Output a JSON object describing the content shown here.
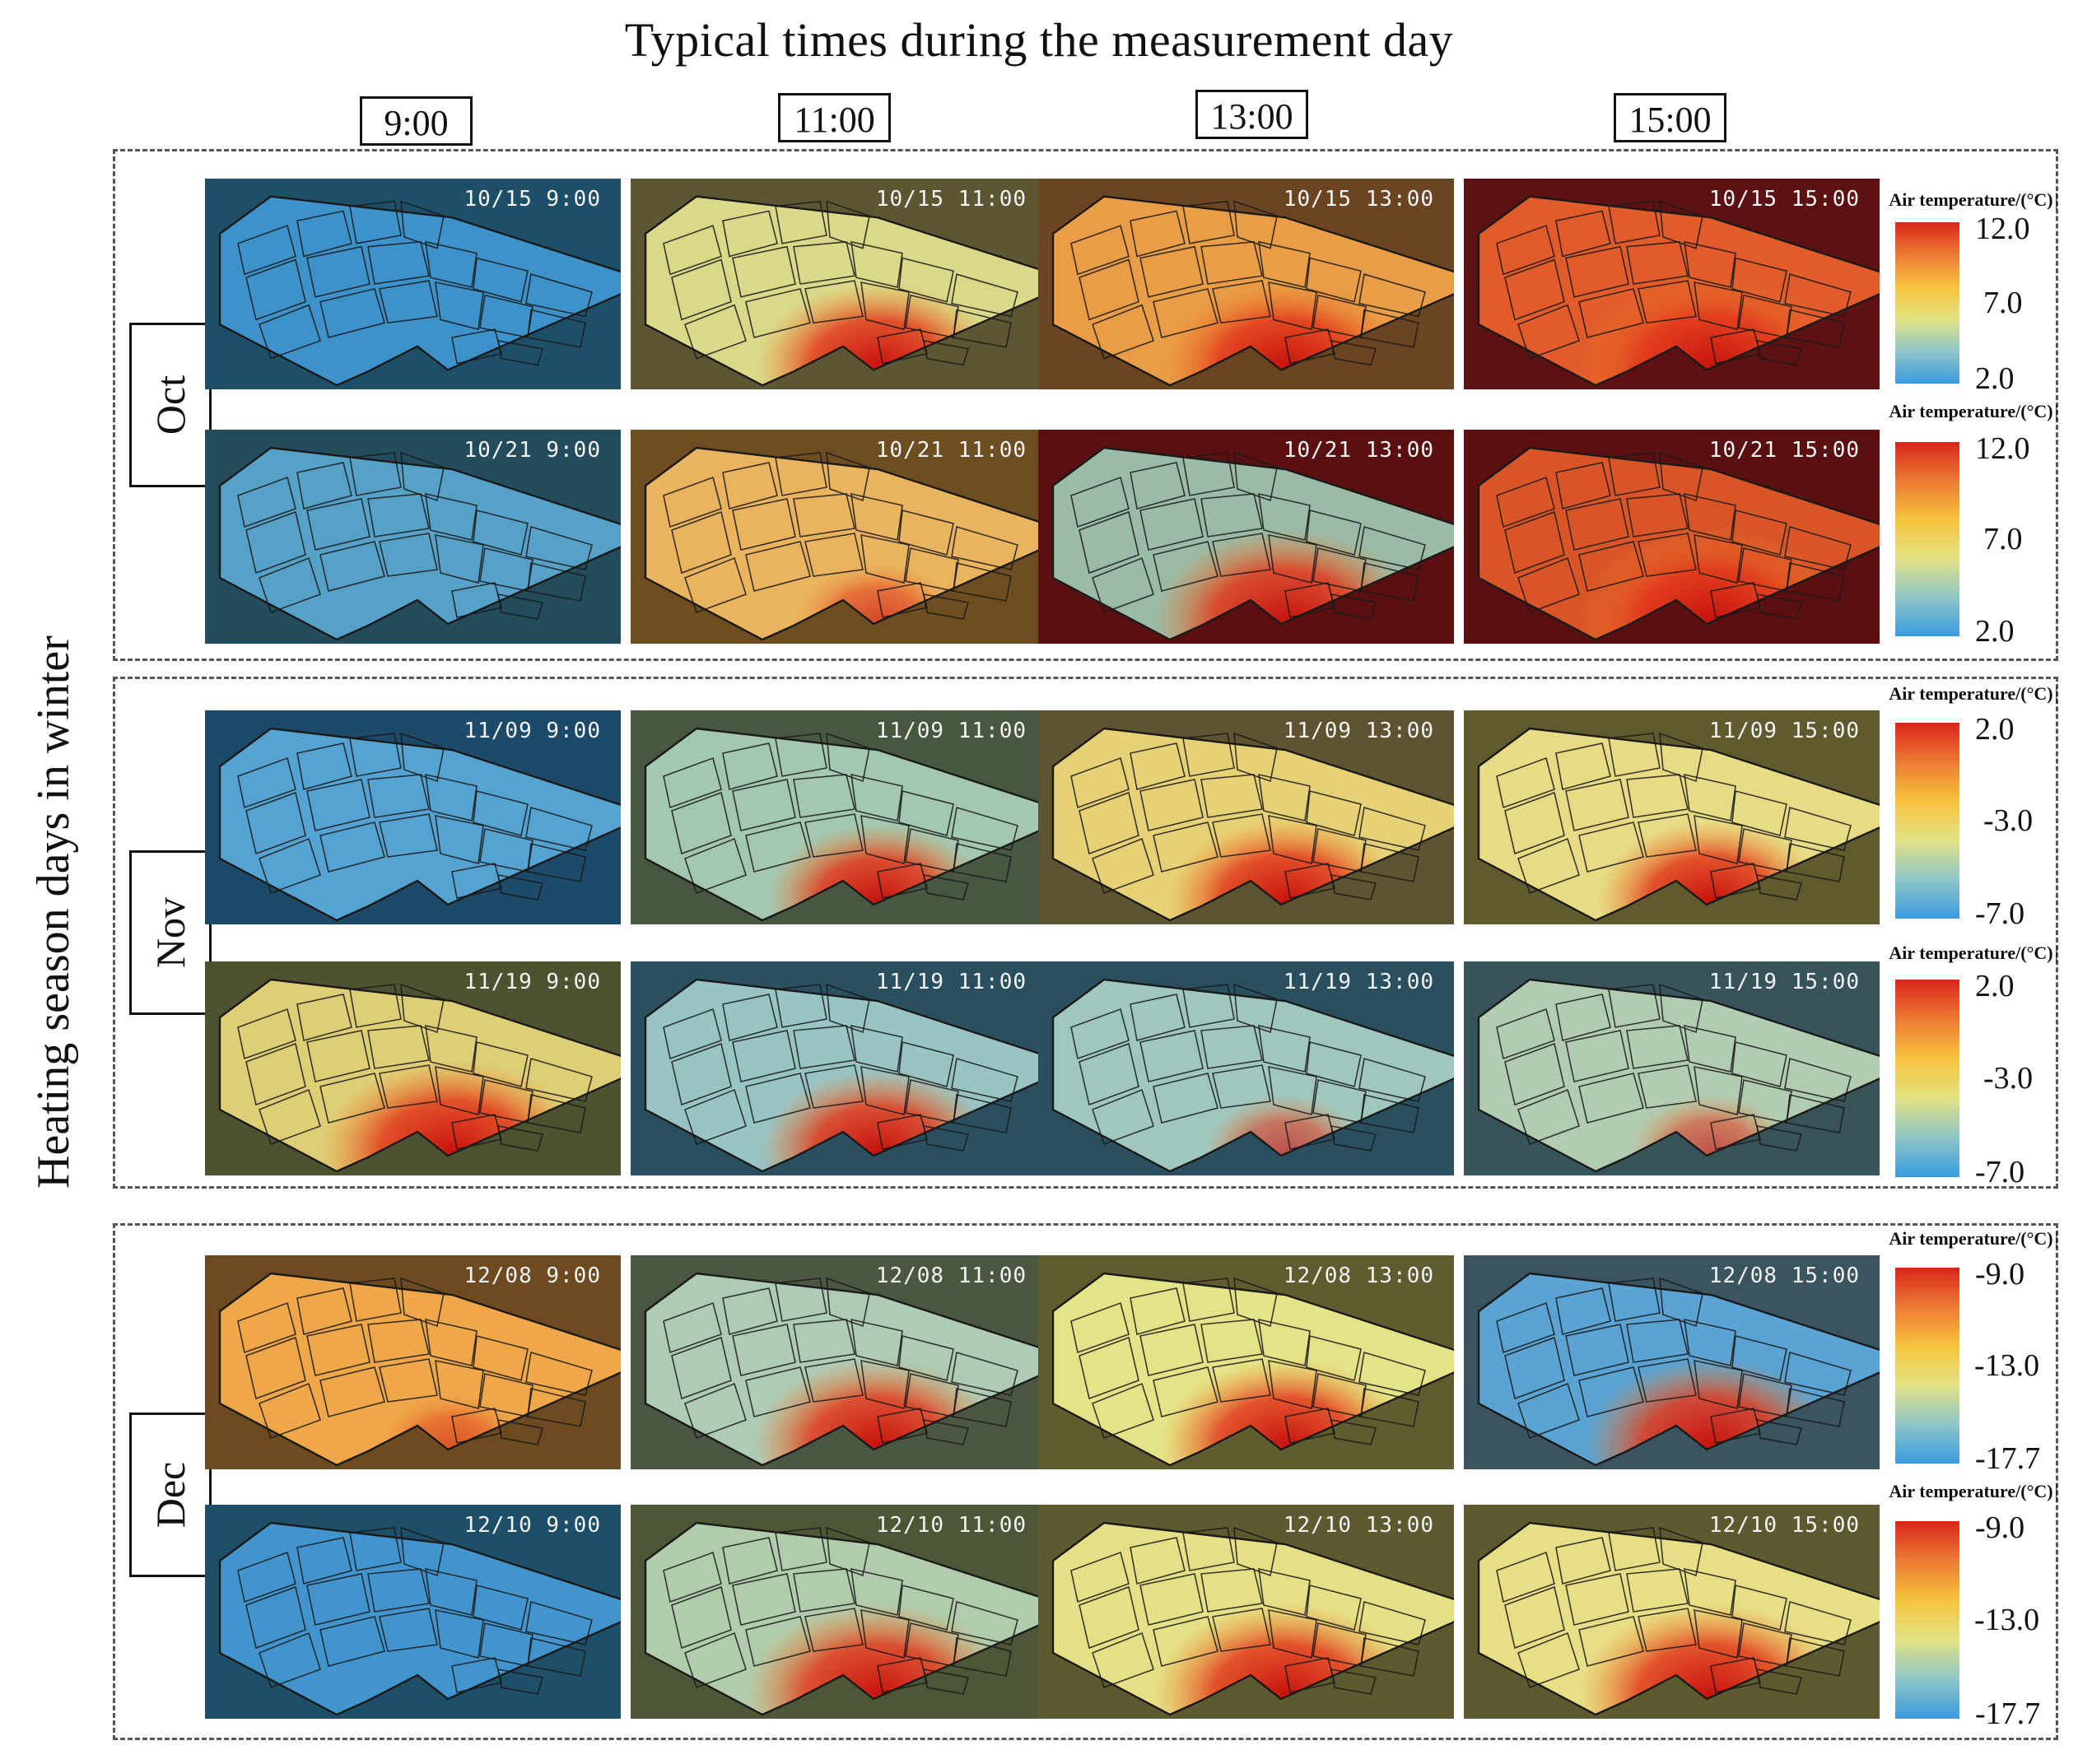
{
  "title": "Typical times during the measurement day",
  "y_axis_label": "Heating season days in winter",
  "times": [
    "9:00",
    "11:00",
    "13:00",
    "15:00"
  ],
  "colorbar": {
    "title": "Air temperature/(°C)",
    "colors": [
      "#3a9be0",
      "#8ec6c8",
      "#e2e282",
      "#f7c33e",
      "#ec7a34",
      "#d9261b"
    ]
  },
  "months": [
    {
      "name": "Oct",
      "days": [
        {
          "date": "10/15",
          "scale": {
            "max": "12.0",
            "mid": "7.0",
            "min": "2.0"
          },
          "maps": [
            {
              "label": "10/15 9:00",
              "base": "#1e4f68",
              "site": "#3f96cf",
              "hot_level": 0
            },
            {
              "label": "10/15 11:00",
              "base": "#5c5633",
              "site": "#e0df8e",
              "hot_level": 0.85
            },
            {
              "label": "10/15 13:00",
              "base": "#6b4422",
              "site": "#f0a24a",
              "hot_level": 0.9
            },
            {
              "label": "10/15 15:00",
              "base": "#5c1212",
              "site": "#e8602d",
              "hot_level": 1.0
            }
          ]
        },
        {
          "date": "10/21",
          "scale": {
            "max": "12.0",
            "mid": "7.0",
            "min": "2.0"
          },
          "maps": [
            {
              "label": "10/21 9:00",
              "base": "#234d5c",
              "site": "#5aa5cc",
              "hot_level": 0
            },
            {
              "label": "10/21 11:00",
              "base": "#6e4d20",
              "site": "#f0b864",
              "hot_level": 0.3
            },
            {
              "label": "10/21 13:00",
              "base": "#5a1010",
              "site": "#9dc5b0",
              "hot_level": 1.0
            },
            {
              "label": "10/21 15:00",
              "base": "#5a1010",
              "site": "#e05a2a",
              "hot_level": 1.0
            }
          ]
        }
      ]
    },
    {
      "name": "Nov",
      "days": [
        {
          "date": "11/09",
          "scale": {
            "max": "2.0",
            "mid": "-3.0",
            "min": "-7.0"
          },
          "maps": [
            {
              "label": "11/09 9:00",
              "base": "#1c4a68",
              "site": "#5aa8d8",
              "hot_level": 0
            },
            {
              "label": "11/09 11:00",
              "base": "#48573f",
              "site": "#a9cdb7",
              "hot_level": 0.7
            },
            {
              "label": "11/09 13:00",
              "base": "#5e5431",
              "site": "#eed87a",
              "hot_level": 0.8
            },
            {
              "label": "11/09 15:00",
              "base": "#5f5b2e",
              "site": "#eee38a",
              "hot_level": 0.75
            }
          ]
        },
        {
          "date": "11/19",
          "scale": {
            "max": "2.0",
            "mid": "-3.0",
            "min": "-7.0"
          },
          "maps": [
            {
              "label": "11/19 9:00",
              "base": "#4f5230",
              "site": "#e6d67a",
              "hot_level": 1.0
            },
            {
              "label": "11/19 11:00",
              "base": "#2a5060",
              "site": "#9fcac9",
              "hot_level": 0.8
            },
            {
              "label": "11/19 13:00",
              "base": "#2a5060",
              "site": "#a7cdc3",
              "hot_level": 0.3
            },
            {
              "label": "11/19 15:00",
              "base": "#37545a",
              "site": "#b7d3b6",
              "hot_level": 0.3
            }
          ]
        }
      ]
    },
    {
      "name": "Dec",
      "days": [
        {
          "date": "12/08",
          "scale": {
            "max": "-9.0",
            "mid": "-13.0",
            "min": "-17.7"
          },
          "maps": [
            {
              "label": "12/08 9:00",
              "base": "#6e4a20",
              "site": "#f5ac4c",
              "hot_level": 0.2
            },
            {
              "label": "12/08 11:00",
              "base": "#4b5740",
              "site": "#b3d2bc",
              "hot_level": 0.9
            },
            {
              "label": "12/08 13:00",
              "base": "#5f5c2f",
              "site": "#ecea8c",
              "hot_level": 0.9
            },
            {
              "label": "12/08 15:00",
              "base": "#3a5560",
              "site": "#5ca8d8",
              "hot_level": 0.9
            }
          ]
        },
        {
          "date": "12/10",
          "scale": {
            "max": "-9.0",
            "mid": "-13.0",
            "min": "-17.7"
          },
          "maps": [
            {
              "label": "12/10 9:00",
              "base": "#1e4f68",
              "site": "#4599d2",
              "hot_level": 0
            },
            {
              "label": "12/10 11:00",
              "base": "#4c5736",
              "site": "#b6d3b3",
              "hot_level": 1.0
            },
            {
              "label": "12/10 13:00",
              "base": "#5c5a2e",
              "site": "#ece88a",
              "hot_level": 1.0
            },
            {
              "label": "12/10 15:00",
              "base": "#5c5a2e",
              "site": "#eee68a",
              "hot_level": 1.0
            }
          ]
        }
      ]
    }
  ]
}
